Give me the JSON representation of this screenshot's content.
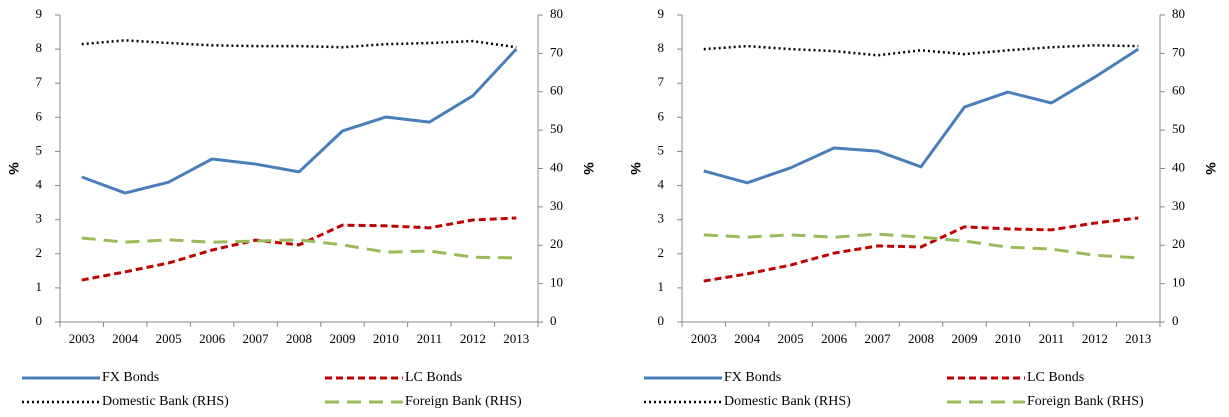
{
  "chart_data": [
    {
      "type": "line",
      "ylabel": "%",
      "y2label": "%",
      "categories": [
        "2003",
        "2004",
        "2005",
        "2006",
        "2007",
        "2008",
        "2009",
        "2010",
        "2011",
        "2012",
        "2013"
      ],
      "ylim": [
        0,
        9
      ],
      "yticks": [
        0,
        1,
        2,
        3,
        4,
        5,
        6,
        7,
        8,
        9
      ],
      "y2lim": [
        0,
        80
      ],
      "y2ticks": [
        0,
        10,
        20,
        30,
        40,
        50,
        60,
        70,
        80
      ],
      "series": [
        {
          "name": "FX Bonds",
          "color": "#4a7ebb",
          "dash": "solid",
          "values": [
            4.25,
            3.78,
            4.1,
            4.78,
            4.63,
            4.4,
            5.6,
            6.01,
            5.86,
            6.63,
            8.0
          ]
        },
        {
          "name": "LC Bonds",
          "color": "#c00000",
          "dash": "dashed",
          "values": [
            1.23,
            1.47,
            1.73,
            2.11,
            2.4,
            2.26,
            2.84,
            2.82,
            2.76,
            2.99,
            3.05
          ]
        },
        {
          "name": "Domestic Bank (RHS)",
          "color": "#000000",
          "dash": "dotted",
          "axis": "y2",
          "values": [
            72.4,
            73.4,
            72.7,
            72.1,
            71.9,
            71.9,
            71.6,
            72.4,
            72.7,
            73.2,
            71.6
          ]
        },
        {
          "name": "Foreign Bank (RHS)",
          "color": "#9bbb59",
          "dash": "longdash",
          "axis": "y2",
          "values": [
            21.9,
            20.8,
            21.4,
            20.8,
            21.1,
            21.4,
            20.1,
            18.2,
            18.5,
            16.9,
            16.7
          ]
        }
      ]
    },
    {
      "type": "line",
      "ylabel": "%",
      "y2label": "%",
      "categories": [
        "2003",
        "2004",
        "2005",
        "2006",
        "2007",
        "2008",
        "2009",
        "2010",
        "2011",
        "2012",
        "2013"
      ],
      "ylim": [
        0,
        9
      ],
      "yticks": [
        0,
        1,
        2,
        3,
        4,
        5,
        6,
        7,
        8,
        9
      ],
      "y2lim": [
        0,
        80
      ],
      "y2ticks": [
        0,
        10,
        20,
        30,
        40,
        50,
        60,
        70,
        80
      ],
      "series": [
        {
          "name": "FX Bonds",
          "color": "#4a7ebb",
          "dash": "solid",
          "values": [
            4.43,
            4.08,
            4.52,
            5.1,
            5.01,
            4.55,
            6.3,
            6.74,
            6.42,
            7.18,
            8.0
          ]
        },
        {
          "name": "LC Bonds",
          "color": "#c00000",
          "dash": "dashed",
          "values": [
            1.2,
            1.41,
            1.67,
            2.02,
            2.23,
            2.2,
            2.79,
            2.73,
            2.7,
            2.9,
            3.05
          ]
        },
        {
          "name": "Domestic Bank (RHS)",
          "color": "#000000",
          "dash": "dotted",
          "axis": "y2",
          "values": [
            71.1,
            71.9,
            71.1,
            70.6,
            69.5,
            70.8,
            69.8,
            70.8,
            71.6,
            72.1,
            71.9
          ]
        },
        {
          "name": "Foreign Bank (RHS)",
          "color": "#9bbb59",
          "dash": "longdash",
          "axis": "y2",
          "values": [
            22.7,
            22.1,
            22.7,
            22.1,
            22.9,
            22.1,
            21.1,
            19.5,
            19.0,
            17.4,
            16.7
          ]
        }
      ]
    }
  ]
}
